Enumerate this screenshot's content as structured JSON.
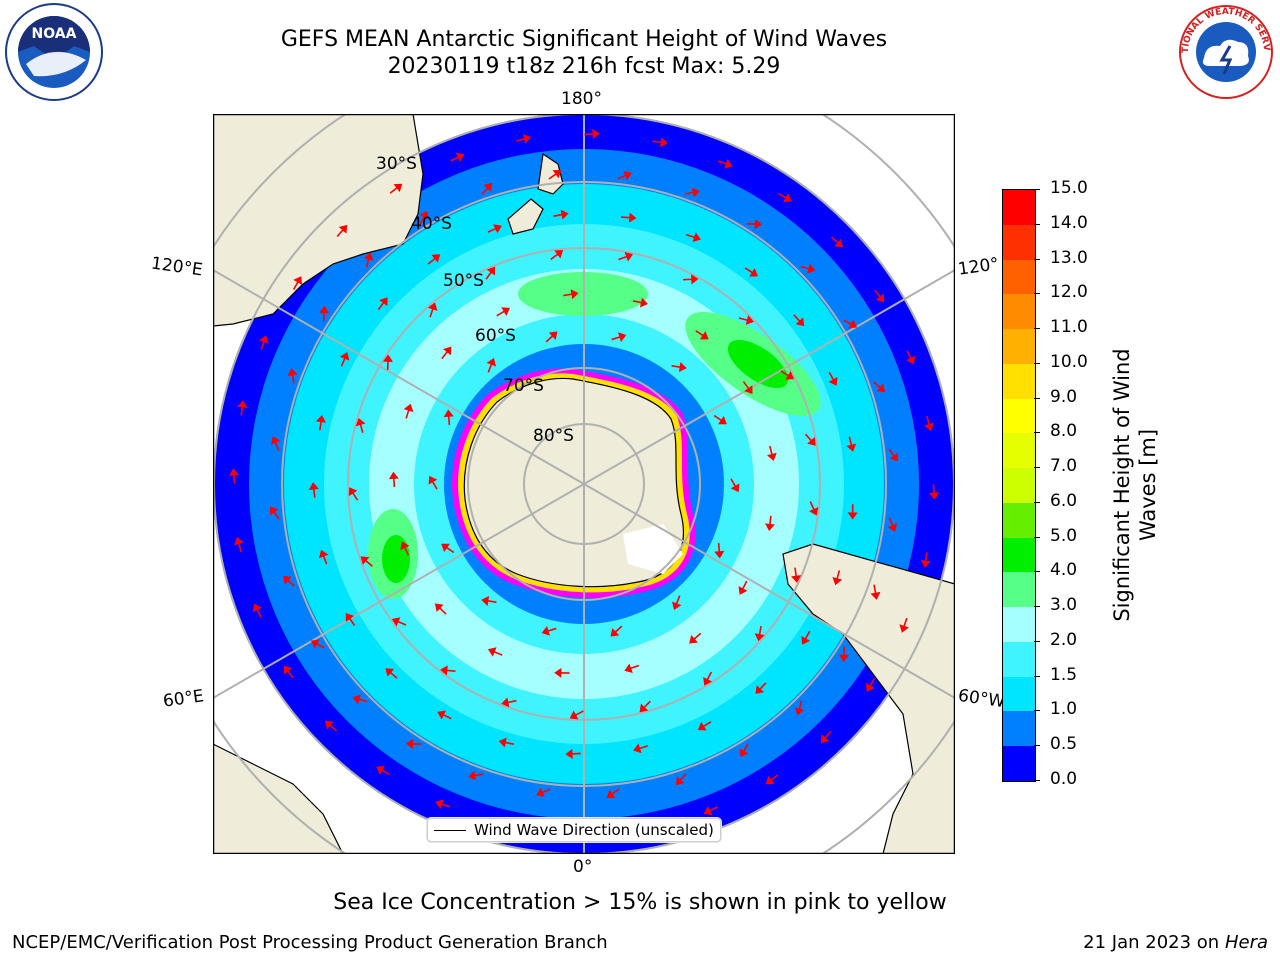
{
  "title": {
    "line1": "GEFS MEAN Antarctic Significant Height of Wind Waves",
    "line2": "20230119 t18z 216h fcst   Max: 5.29"
  },
  "map": {
    "lon_labels": {
      "top": "180°",
      "bottom": "0°",
      "left_upper": "120°E",
      "left_lower": "60°E",
      "right_upper": "120°",
      "right_lower": "60°W"
    },
    "lat_labels": [
      "30°S",
      "40°S",
      "50°S",
      "60°S",
      "70°S",
      "80°S"
    ],
    "legend_label": "Wind Wave Direction (unscaled)",
    "land_color": "#efedd9",
    "ocean_colors": [
      "#0000ff",
      "#0080ff",
      "#00e5ff",
      "#3ff3ff",
      "#a6ffff",
      "#55ff88",
      "#00ee00"
    ],
    "arrow_color": "#ff0000",
    "ice_colors": [
      "#ff00ff",
      "#ffe000",
      "#ffffff"
    ]
  },
  "colorbar": {
    "label_line1": "Significant Height of Wind",
    "label_line2": "Waves [m]",
    "ticks": [
      "0.0",
      "0.5",
      "1.0",
      "1.5",
      "2.0",
      "3.0",
      "4.0",
      "5.0",
      "6.0",
      "7.0",
      "8.0",
      "9.0",
      "10.0",
      "11.0",
      "12.0",
      "13.0",
      "14.0",
      "15.0"
    ],
    "colors": [
      "#0000ff",
      "#0080ff",
      "#00e5ff",
      "#3ff3ff",
      "#a6ffff",
      "#55ff88",
      "#00ee00",
      "#66ee00",
      "#ccff00",
      "#e5ff00",
      "#ffff00",
      "#ffe000",
      "#ffb000",
      "#ff8c00",
      "#ff6000",
      "#ff3000",
      "#ff0000"
    ]
  },
  "logos": {
    "left_text": "NOAA",
    "right_text": "NATIONAL WEATHER SERVICE"
  },
  "footer": {
    "note": "Sea Ice Concentration > 15% is shown in pink to yellow",
    "credit": "NCEP/EMC/Verification Post Processing Product Generation Branch",
    "date": "21 Jan 2023 on",
    "machine": "Hera"
  }
}
